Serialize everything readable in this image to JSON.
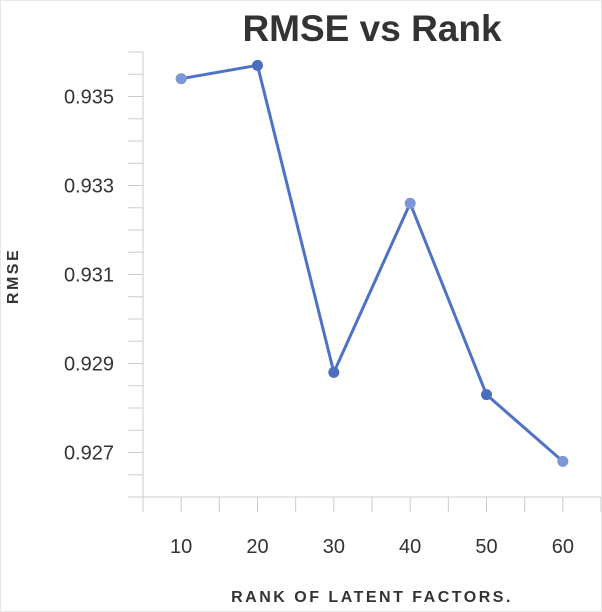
{
  "chart_data": {
    "type": "line",
    "title": "RMSE vs Rank",
    "xlabel": "RANK OF LATENT FACTORS.",
    "ylabel": "RMSE",
    "x": [
      10,
      20,
      30,
      40,
      50,
      60
    ],
    "series": [
      {
        "values": [
          0.9354,
          0.9357,
          0.9288,
          0.9326,
          0.9283,
          0.9268
        ]
      }
    ],
    "x_tick_labels": [
      "10",
      "20",
      "30",
      "40",
      "50",
      "60"
    ],
    "y_tick_labels": [
      "0.935",
      "0.933",
      "0.931",
      "0.929",
      "0.927"
    ],
    "y_ticks": [
      0.935,
      0.933,
      0.931,
      0.929,
      0.927
    ],
    "ylim": [
      0.926,
      0.936
    ],
    "xlim": [
      5,
      65
    ],
    "grid": false,
    "colors": {
      "line": "#4f72c4",
      "marker_dark": "#4a6cc1",
      "marker_light": "#7d97d6"
    }
  }
}
